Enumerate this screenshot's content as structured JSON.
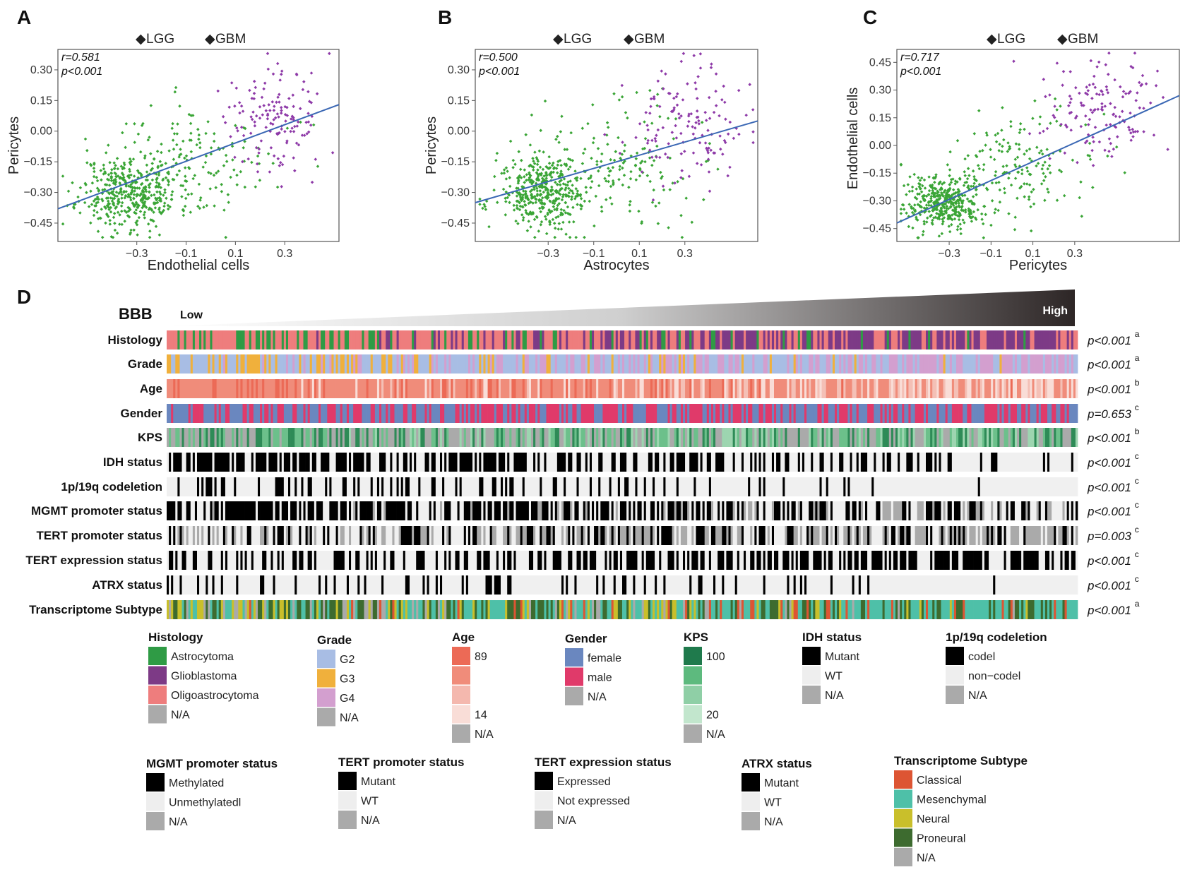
{
  "chart_data": [
    {
      "panel": "A",
      "type": "scatter",
      "xlabel": "Endothelial cells",
      "ylabel": "Pericytes",
      "xlim": [
        -0.62,
        0.52
      ],
      "ylim": [
        -0.54,
        0.4
      ],
      "x_ticks": [
        -0.3,
        -0.1,
        0.1,
        0.3
      ],
      "x_tick_labels": [
        "−0.3",
        "−0.1",
        "0.1",
        "0.3"
      ],
      "y_ticks": [
        0.3,
        0.15,
        0.0,
        -0.15,
        -0.3,
        -0.45
      ],
      "y_tick_labels": [
        "0.30",
        "0.15",
        "0.00",
        "−0.15",
        "−0.30",
        "−0.45"
      ],
      "stats": {
        "r": "r=0.581",
        "p": "p<0.001"
      },
      "legend": [
        "LGG",
        "GBM"
      ],
      "fit_line": {
        "x": [
          -0.62,
          0.52
        ],
        "y": [
          -0.38,
          0.13
        ]
      },
      "clusters": [
        {
          "series": "LGG",
          "n": 420,
          "x_mean": -0.33,
          "x_sd": 0.1,
          "y_mean": -0.3,
          "y_sd": 0.09,
          "seed": 11
        },
        {
          "series": "LGG",
          "n": 150,
          "x_mean": -0.05,
          "x_sd": 0.17,
          "y_mean": -0.15,
          "y_sd": 0.14,
          "seed": 12
        },
        {
          "series": "GBM",
          "n": 140,
          "x_mean": 0.26,
          "x_sd": 0.1,
          "y_mean": 0.06,
          "y_sd": 0.13,
          "seed": 13
        }
      ]
    },
    {
      "panel": "B",
      "type": "scatter",
      "xlabel": "Astrocytes",
      "ylabel": "Pericytes",
      "xlim": [
        -0.62,
        0.62
      ],
      "ylim": [
        -0.54,
        0.4
      ],
      "x_ticks": [
        -0.3,
        -0.1,
        0.1,
        0.3
      ],
      "x_tick_labels": [
        "−0.3",
        "−0.1",
        "0.1",
        "0.3"
      ],
      "y_ticks": [
        0.3,
        0.15,
        0.0,
        -0.15,
        -0.3,
        -0.45
      ],
      "y_tick_labels": [
        "0.30",
        "0.15",
        "0.00",
        "−0.15",
        "−0.30",
        "−0.45"
      ],
      "stats": {
        "r": "r=0.500",
        "p": "p<0.001"
      },
      "legend": [
        "LGG",
        "GBM"
      ],
      "fit_line": {
        "x": [
          -0.62,
          0.62
        ],
        "y": [
          -0.35,
          0.05
        ]
      },
      "clusters": [
        {
          "series": "LGG",
          "n": 400,
          "x_mean": -0.32,
          "x_sd": 0.1,
          "y_mean": -0.3,
          "y_sd": 0.09,
          "seed": 21
        },
        {
          "series": "LGG",
          "n": 170,
          "x_mean": 0.0,
          "x_sd": 0.18,
          "y_mean": -0.17,
          "y_sd": 0.15,
          "seed": 22
        },
        {
          "series": "GBM",
          "n": 140,
          "x_mean": 0.3,
          "x_sd": 0.13,
          "y_mean": 0.02,
          "y_sd": 0.14,
          "seed": 23
        }
      ]
    },
    {
      "panel": "C",
      "type": "scatter",
      "xlabel": "Pericytes",
      "ylabel": "Endothelial cells",
      "xlim": [
        -0.55,
        0.8
      ],
      "ylim": [
        -0.52,
        0.52
      ],
      "x_ticks": [
        -0.3,
        -0.1,
        0.1,
        0.3
      ],
      "x_tick_labels": [
        "−0.3",
        "−0.1",
        "0.1",
        "0.3"
      ],
      "y_ticks": [
        0.45,
        0.3,
        0.15,
        0.0,
        -0.15,
        -0.3,
        -0.45
      ],
      "y_tick_labels": [
        "0.45",
        "0.30",
        "0.15",
        "0.00",
        "−0.15",
        "−0.30",
        "−0.45"
      ],
      "stats": {
        "r": "r=0.717",
        "p": "p<0.001"
      },
      "legend": [
        "LGG",
        "GBM"
      ],
      "fit_line": {
        "x": [
          -0.55,
          0.8
        ],
        "y": [
          -0.42,
          0.27
        ]
      },
      "clusters": [
        {
          "series": "LGG",
          "n": 400,
          "x_mean": -0.33,
          "x_sd": 0.09,
          "y_mean": -0.31,
          "y_sd": 0.07,
          "seed": 31
        },
        {
          "series": "LGG",
          "n": 170,
          "x_mean": 0.0,
          "x_sd": 0.2,
          "y_mean": -0.1,
          "y_sd": 0.15,
          "seed": 32
        },
        {
          "series": "GBM",
          "n": 140,
          "x_mean": 0.42,
          "x_sd": 0.14,
          "y_mean": 0.2,
          "y_sd": 0.13,
          "seed": 33
        }
      ]
    },
    {
      "panel": "D",
      "type": "heatmap",
      "title": "BBB",
      "gradient_low": "Low",
      "gradient_high": "High",
      "n_samples": 420,
      "rows": [
        {
          "label": "Histology",
          "p": "p<0.001",
          "sup": "a",
          "kind": "cat",
          "start": [
            "#ee7d7d",
            "#ee7d7d",
            "#2f9b45"
          ],
          "end": [
            "#7d3a86",
            "#7d3a86",
            "#ee7d7d"
          ],
          "seed": 101
        },
        {
          "label": "Grade",
          "p": "p<0.001",
          "sup": "a",
          "kind": "cat",
          "start": [
            "#a8bde4",
            "#f0b03c",
            "#a8bde4"
          ],
          "end": [
            "#d39fcf",
            "#d39fcf",
            "#a8bde4"
          ],
          "seed": 102
        },
        {
          "label": "Age",
          "p": "p<0.001",
          "sup": "b",
          "kind": "cat",
          "start": [
            "#ec6a56",
            "#f08c7a",
            "#f08c7a"
          ],
          "end": [
            "#f4c0b6",
            "#f9ddd7",
            "#f08c7a"
          ],
          "seed": 103
        },
        {
          "label": "Gender",
          "p": "p=0.653",
          "sup": "c",
          "kind": "cat",
          "start": [
            "#e03a6a",
            "#6a87bf"
          ],
          "end": [
            "#e03a6a",
            "#6a87bf"
          ],
          "seed": 104
        },
        {
          "label": "KPS",
          "p": "p<0.001",
          "sup": "b",
          "kind": "cat",
          "start": [
            "#aaaaaa",
            "#2e8b57",
            "#6cc08b",
            "#aaaaaa"
          ],
          "end": [
            "#6cc08b",
            "#9dd5b0",
            "#aaaaaa",
            "#2e8b57"
          ],
          "seed": 105
        },
        {
          "label": "IDH status",
          "p": "p<0.001",
          "sup": "c",
          "kind": "bin",
          "start": [
            "#000000",
            "#000000",
            "#000000",
            "#000000",
            "#f0f0f0"
          ],
          "end": [
            "#f0f0f0",
            "#f0f0f0",
            "#f0f0f0",
            "#f0f0f0",
            "#000000"
          ],
          "seed": 106
        },
        {
          "label": "1p/19q codeletion",
          "p": "p<0.001",
          "sup": "c",
          "kind": "bin",
          "start": [
            "#000000",
            "#f0f0f0",
            "#f0f0f0"
          ],
          "end": [
            "#f0f0f0",
            "#f0f0f0",
            "#f0f0f0"
          ],
          "seed": 107
        },
        {
          "label": "MGMT promoter status",
          "p": "p<0.001",
          "sup": "c",
          "kind": "bin",
          "start": [
            "#000000",
            "#000000",
            "#000000",
            "#f0f0f0"
          ],
          "end": [
            "#000000",
            "#f0f0f0",
            "#f0f0f0",
            "#aaaaaa"
          ],
          "seed": 108
        },
        {
          "label": "TERT promoter status",
          "p": "p=0.003",
          "sup": "c",
          "kind": "bin",
          "start": [
            "#f0f0f0",
            "#aaaaaa",
            "#000000",
            "#f0f0f0"
          ],
          "end": [
            "#aaaaaa",
            "#000000",
            "#f0f0f0",
            "#aaaaaa"
          ],
          "seed": 109
        },
        {
          "label": "TERT expression status",
          "p": "p<0.001",
          "sup": "c",
          "kind": "bin",
          "start": [
            "#f0f0f0",
            "#f0f0f0",
            "#000000"
          ],
          "end": [
            "#000000",
            "#000000",
            "#f0f0f0"
          ],
          "seed": 110
        },
        {
          "label": "ATRX status",
          "p": "p<0.001",
          "sup": "c",
          "kind": "bin",
          "start": [
            "#f0f0f0",
            "#000000",
            "#f0f0f0"
          ],
          "end": [
            "#f0f0f0",
            "#f0f0f0",
            "#f0f0f0"
          ],
          "seed": 111
        },
        {
          "label": "Transcriptome Subtype",
          "p": "p<0.001",
          "sup": "a",
          "kind": "cat",
          "start": [
            "#3d6b2f",
            "#c9bf2b",
            "#4ec0a8",
            "#aaaaaa"
          ],
          "end": [
            "#dd5533",
            "#4ec0a8",
            "#4ec0a8",
            "#3d6b2f"
          ],
          "seed": 112
        }
      ]
    }
  ],
  "legends": [
    {
      "title": "Histology",
      "items": [
        {
          "color": "#2f9b45",
          "label": "Astrocytoma"
        },
        {
          "color": "#7d3a86",
          "label": "Glioblastoma"
        },
        {
          "color": "#ee7d7d",
          "label": "Oligoastrocytoma"
        },
        {
          "color": "#aaaaaa",
          "label": "N/A"
        }
      ]
    },
    {
      "title": "Grade",
      "items": [
        {
          "color": "#a8bde4",
          "label": "G2"
        },
        {
          "color": "#f0b03c",
          "label": "G3"
        },
        {
          "color": "#d39fcf",
          "label": "G4"
        },
        {
          "color": "#aaaaaa",
          "label": "N/A"
        }
      ]
    },
    {
      "title": "Age",
      "items": [
        {
          "color": "#ec6a56",
          "label": "89"
        },
        {
          "color": "#f08c7a",
          "label": ""
        },
        {
          "color": "#f4b8ae",
          "label": ""
        },
        {
          "color": "#f9ddd7",
          "label": "14"
        },
        {
          "color": "#aaaaaa",
          "label": "N/A"
        }
      ]
    },
    {
      "title": "Gender",
      "items": [
        {
          "color": "#6a87bf",
          "label": "female"
        },
        {
          "color": "#e03a6a",
          "label": "male"
        },
        {
          "color": "#aaaaaa",
          "label": "N/A"
        }
      ]
    },
    {
      "title": "KPS",
      "items": [
        {
          "color": "#1f7a4c",
          "label": "100"
        },
        {
          "color": "#5dba7e",
          "label": ""
        },
        {
          "color": "#8fcfa6",
          "label": ""
        },
        {
          "color": "#c2e6cd",
          "label": "20"
        },
        {
          "color": "#aaaaaa",
          "label": "N/A"
        }
      ]
    },
    {
      "title": "IDH status",
      "items": [
        {
          "color": "#000000",
          "label": "Mutant"
        },
        {
          "color": "#eeeeee",
          "label": "WT"
        },
        {
          "color": "#aaaaaa",
          "label": "N/A"
        }
      ]
    },
    {
      "title": "1p/19q codeletion",
      "items": [
        {
          "color": "#000000",
          "label": "codel"
        },
        {
          "color": "#eeeeee",
          "label": "non−codel"
        },
        {
          "color": "#aaaaaa",
          "label": "N/A"
        }
      ]
    },
    {
      "title": "MGMT promoter status",
      "items": [
        {
          "color": "#000000",
          "label": "Methylated"
        },
        {
          "color": "#eeeeee",
          "label": "Unmethylatedl"
        },
        {
          "color": "#aaaaaa",
          "label": "N/A"
        }
      ]
    },
    {
      "title": "TERT promoter status",
      "items": [
        {
          "color": "#000000",
          "label": "Mutant"
        },
        {
          "color": "#eeeeee",
          "label": "WT"
        },
        {
          "color": "#aaaaaa",
          "label": "N/A"
        }
      ]
    },
    {
      "title": "TERT expression status",
      "items": [
        {
          "color": "#000000",
          "label": "Expressed"
        },
        {
          "color": "#eeeeee",
          "label": "Not expressed"
        },
        {
          "color": "#aaaaaa",
          "label": "N/A"
        }
      ]
    },
    {
      "title": "ATRX status",
      "items": [
        {
          "color": "#000000",
          "label": "Mutant"
        },
        {
          "color": "#eeeeee",
          "label": "WT"
        },
        {
          "color": "#aaaaaa",
          "label": "N/A"
        }
      ]
    },
    {
      "title": "Transcriptome Subtype",
      "items": [
        {
          "color": "#dd5533",
          "label": "Classical"
        },
        {
          "color": "#4ec0a8",
          "label": "Mesenchymal"
        },
        {
          "color": "#c9bf2b",
          "label": "Neural"
        },
        {
          "color": "#3d6b2f",
          "label": "Proneural"
        },
        {
          "color": "#aaaaaa",
          "label": "N/A"
        }
      ]
    }
  ],
  "colors": {
    "lgg": "#3aa536",
    "gbm": "#8e3aa8",
    "fit_line": "#3a67b4",
    "frame": "#555555"
  }
}
